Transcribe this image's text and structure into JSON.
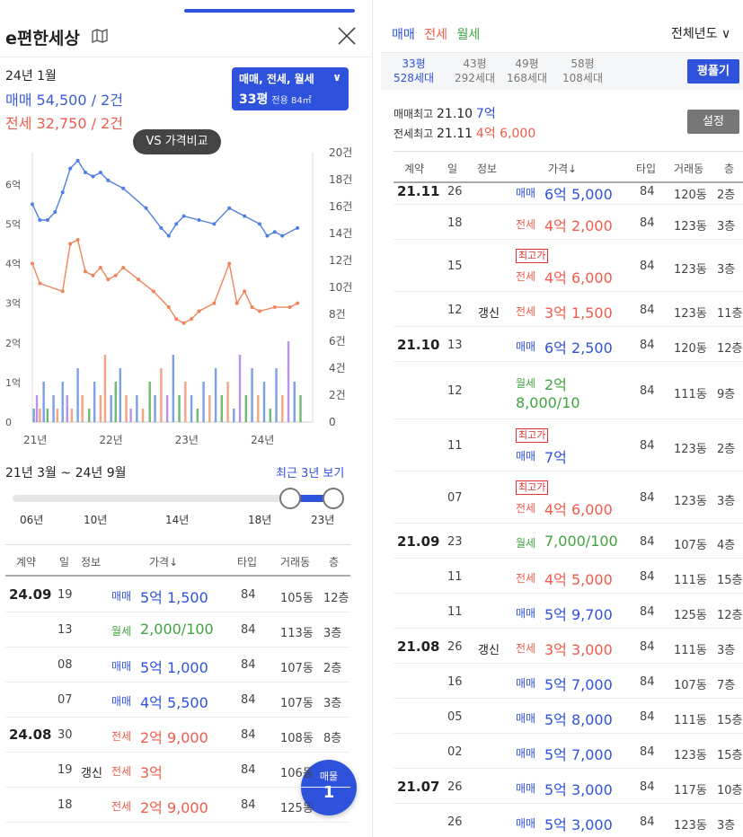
{
  "app": {
    "title": "e편한세상"
  },
  "header": {
    "map_icon": "map-icon",
    "close_icon": "close-icon"
  },
  "info": {
    "date": "24년 1월",
    "sale": "매매 54,500 / 2건",
    "jeonse": "전세 32,750 / 2건"
  },
  "filter": {
    "types": "매매, 전세, 월세",
    "chevron": "∨",
    "size": "33평",
    "area": "전용 84㎡"
  },
  "compare_button": "VS 가격비교",
  "chart_data": {
    "type": "line",
    "x_ticks": [
      "21년",
      "22년",
      "23년",
      "24년"
    ],
    "y_left_ticks": [
      "0",
      "1억",
      "2억",
      "3억",
      "4억",
      "5억",
      "6억"
    ],
    "y_right_ticks": [
      "0",
      "2건",
      "4건",
      "6건",
      "8건",
      "10건",
      "12건",
      "14건",
      "16건",
      "18건",
      "20건"
    ],
    "y_left_range": [
      0,
      6.8
    ],
    "y_right_range": [
      0,
      20
    ],
    "x_range": [
      2021.0,
      2024.7
    ],
    "series": [
      {
        "color": "#4f7fe0",
        "points": [
          [
            2021.0,
            5.5
          ],
          [
            2021.1,
            5.1
          ],
          [
            2021.2,
            5.1
          ],
          [
            2021.3,
            5.3
          ],
          [
            2021.4,
            5.8
          ],
          [
            2021.5,
            6.4
          ],
          [
            2021.6,
            6.6
          ],
          [
            2021.7,
            6.3
          ],
          [
            2021.8,
            6.2
          ],
          [
            2021.9,
            6.3
          ],
          [
            2022.0,
            6.1
          ],
          [
            2022.2,
            5.9
          ],
          [
            2022.5,
            5.4
          ],
          [
            2022.7,
            4.9
          ],
          [
            2022.8,
            4.7
          ],
          [
            2022.9,
            5.0
          ],
          [
            2023.0,
            5.2
          ],
          [
            2023.2,
            5.1
          ],
          [
            2023.4,
            5.0
          ],
          [
            2023.6,
            5.4
          ],
          [
            2023.8,
            5.2
          ],
          [
            2024.0,
            5.0
          ],
          [
            2024.1,
            4.7
          ],
          [
            2024.2,
            4.8
          ],
          [
            2024.3,
            4.7
          ],
          [
            2024.5,
            4.9
          ]
        ]
      },
      {
        "color": "#f0845c",
        "points": [
          [
            2021.0,
            4.0
          ],
          [
            2021.1,
            3.5
          ],
          [
            2021.4,
            3.3
          ],
          [
            2021.5,
            4.5
          ],
          [
            2021.6,
            4.6
          ],
          [
            2021.7,
            3.8
          ],
          [
            2021.8,
            3.7
          ],
          [
            2021.9,
            3.9
          ],
          [
            2022.0,
            3.6
          ],
          [
            2022.1,
            3.7
          ],
          [
            2022.2,
            3.9
          ],
          [
            2022.4,
            3.6
          ],
          [
            2022.6,
            3.3
          ],
          [
            2022.8,
            2.9
          ],
          [
            2022.9,
            2.6
          ],
          [
            2023.0,
            2.5
          ],
          [
            2023.1,
            2.6
          ],
          [
            2023.2,
            2.8
          ],
          [
            2023.4,
            3.0
          ],
          [
            2023.6,
            4.0
          ],
          [
            2023.7,
            3.0
          ],
          [
            2023.8,
            3.3
          ],
          [
            2023.9,
            2.9
          ],
          [
            2024.0,
            2.8
          ],
          [
            2024.2,
            2.9
          ],
          [
            2024.4,
            2.9
          ],
          [
            2024.5,
            3.0
          ]
        ]
      }
    ],
    "volume_bars": [
      {
        "x": 2021.02,
        "n": 1,
        "c": "#4f7fe0"
      },
      {
        "x": 2021.06,
        "n": 2,
        "c": "#a070e0"
      },
      {
        "x": 2021.1,
        "n": 1,
        "c": "#f0845c"
      },
      {
        "x": 2021.15,
        "n": 3,
        "c": "#4f7fe0"
      },
      {
        "x": 2021.2,
        "n": 1,
        "c": "#3fa33f"
      },
      {
        "x": 2021.28,
        "n": 2,
        "c": "#4f7fe0"
      },
      {
        "x": 2021.33,
        "n": 1,
        "c": "#f0845c"
      },
      {
        "x": 2021.4,
        "n": 3,
        "c": "#4f7fe0"
      },
      {
        "x": 2021.46,
        "n": 2,
        "c": "#a070e0"
      },
      {
        "x": 2021.52,
        "n": 1,
        "c": "#f0845c"
      },
      {
        "x": 2021.6,
        "n": 4,
        "c": "#4f7fe0"
      },
      {
        "x": 2021.66,
        "n": 2,
        "c": "#f0845c"
      },
      {
        "x": 2021.75,
        "n": 1,
        "c": "#3fa33f"
      },
      {
        "x": 2021.82,
        "n": 3,
        "c": "#4f7fe0"
      },
      {
        "x": 2021.9,
        "n": 2,
        "c": "#f0845c"
      },
      {
        "x": 2021.96,
        "n": 5,
        "c": "#f0845c"
      },
      {
        "x": 2022.04,
        "n": 2,
        "c": "#4f7fe0"
      },
      {
        "x": 2022.1,
        "n": 3,
        "c": "#3fa33f"
      },
      {
        "x": 2022.16,
        "n": 4,
        "c": "#4f7fe0"
      },
      {
        "x": 2022.24,
        "n": 2,
        "c": "#f0845c"
      },
      {
        "x": 2022.3,
        "n": 1,
        "c": "#a070e0"
      },
      {
        "x": 2022.38,
        "n": 2,
        "c": "#4f7fe0"
      },
      {
        "x": 2022.46,
        "n": 1,
        "c": "#f0845c"
      },
      {
        "x": 2022.55,
        "n": 3,
        "c": "#3fa33f"
      },
      {
        "x": 2022.62,
        "n": 2,
        "c": "#4f7fe0"
      },
      {
        "x": 2022.7,
        "n": 4,
        "c": "#f0845c"
      },
      {
        "x": 2022.78,
        "n": 2,
        "c": "#a070e0"
      },
      {
        "x": 2022.86,
        "n": 5,
        "c": "#4f7fe0"
      },
      {
        "x": 2022.94,
        "n": 2,
        "c": "#3fa33f"
      },
      {
        "x": 2023.02,
        "n": 3,
        "c": "#f0845c"
      },
      {
        "x": 2023.1,
        "n": 2,
        "c": "#4f7fe0"
      },
      {
        "x": 2023.18,
        "n": 1,
        "c": "#3fa33f"
      },
      {
        "x": 2023.26,
        "n": 3,
        "c": "#4f7fe0"
      },
      {
        "x": 2023.34,
        "n": 2,
        "c": "#f0845c"
      },
      {
        "x": 2023.42,
        "n": 4,
        "c": "#4f7fe0"
      },
      {
        "x": 2023.5,
        "n": 2,
        "c": "#3fa33f"
      },
      {
        "x": 2023.58,
        "n": 3,
        "c": "#f0845c"
      },
      {
        "x": 2023.66,
        "n": 1,
        "c": "#4f7fe0"
      },
      {
        "x": 2023.74,
        "n": 5,
        "c": "#a070e0"
      },
      {
        "x": 2023.82,
        "n": 2,
        "c": "#3fa33f"
      },
      {
        "x": 2023.9,
        "n": 4,
        "c": "#4f7fe0"
      },
      {
        "x": 2023.98,
        "n": 2,
        "c": "#f0845c"
      },
      {
        "x": 2024.06,
        "n": 3,
        "c": "#4f7fe0"
      },
      {
        "x": 2024.14,
        "n": 1,
        "c": "#3fa33f"
      },
      {
        "x": 2024.22,
        "n": 4,
        "c": "#4f7fe0"
      },
      {
        "x": 2024.3,
        "n": 2,
        "c": "#f0845c"
      },
      {
        "x": 2024.38,
        "n": 6,
        "c": "#a070e0"
      },
      {
        "x": 2024.46,
        "n": 3,
        "c": "#4f7fe0"
      },
      {
        "x": 2024.54,
        "n": 2,
        "c": "#3fa33f"
      }
    ]
  },
  "range": {
    "text": "21년 3월 ~ 24년 9월",
    "link": "최근 3년 보기",
    "labels": [
      "06년",
      "10년",
      "14년",
      "18년",
      "23년"
    ]
  },
  "table": {
    "headers": [
      "계약",
      "일",
      "정보",
      "가격↓",
      "타입",
      "거래동",
      "층"
    ],
    "rows": [
      {
        "month": "24.09",
        "day": "19",
        "info": "",
        "kind": "매매",
        "price": "5억 1,500",
        "color": "blue",
        "type": "84",
        "bldg": "105동",
        "floor": "12층"
      },
      {
        "month": "",
        "day": "13",
        "info": "",
        "kind": "월세",
        "price": "2,000/100",
        "color": "green",
        "type": "84",
        "bldg": "113동",
        "floor": "3층"
      },
      {
        "month": "",
        "day": "08",
        "info": "",
        "kind": "매매",
        "price": "5억 1,000",
        "color": "blue",
        "type": "84",
        "bldg": "107동",
        "floor": "2층"
      },
      {
        "month": "",
        "day": "07",
        "info": "",
        "kind": "매매",
        "price": "4억 5,500",
        "color": "blue",
        "type": "84",
        "bldg": "107동",
        "floor": "3층"
      },
      {
        "month": "24.08",
        "day": "30",
        "info": "",
        "kind": "전세",
        "price": "2억 9,000",
        "color": "red",
        "type": "84",
        "bldg": "108동",
        "floor": "8층"
      },
      {
        "month": "",
        "day": "19",
        "info": "갱신",
        "kind": "전세",
        "price": "3억",
        "color": "red",
        "type": "84",
        "bldg": "106동",
        "floor": ""
      },
      {
        "month": "",
        "day": "18",
        "info": "",
        "kind": "전세",
        "price": "2억 9,000",
        "color": "red",
        "type": "84",
        "bldg": "125동",
        "floor": ""
      }
    ]
  },
  "float_button": {
    "label": "매물",
    "count": "1"
  },
  "right": {
    "tabs": [
      {
        "label": "매매",
        "color": "blue"
      },
      {
        "label": "전세",
        "color": "red"
      },
      {
        "label": "월세",
        "color": "green"
      }
    ],
    "year_filter": "전체년도",
    "chevron": "∨",
    "pyeong": [
      {
        "size": "33평",
        "households": "528세대",
        "active": true
      },
      {
        "size": "43평",
        "households": "292세대",
        "active": false
      },
      {
        "size": "49평",
        "households": "168세대",
        "active": false
      },
      {
        "size": "58평",
        "households": "108세대",
        "active": false
      }
    ],
    "pyeong_button": "평풀기",
    "sale_max_label": "매매최고",
    "sale_max_date": "21.10",
    "sale_max_price": "7억",
    "jeonse_max_label": "전세최고",
    "jeonse_max_date": "21.11",
    "jeonse_max_price": "4억 6,000",
    "settings_button": "설정",
    "headers": [
      "계약",
      "일",
      "정보",
      "가격↓",
      "타입",
      "거래동",
      "층"
    ],
    "high_badge": "최고가",
    "rows": [
      {
        "month": "21.11",
        "day": "26",
        "info": "",
        "kind": "매매",
        "price": "6억 5,000",
        "color": "blue",
        "type": "84",
        "bldg": "120동",
        "floor": "2층",
        "badge": false,
        "h": 30
      },
      {
        "month": "",
        "day": "18",
        "info": "",
        "kind": "전세",
        "price": "4억 2,000",
        "color": "red",
        "type": "84",
        "bldg": "123동",
        "floor": "3층",
        "badge": false,
        "h": 39
      },
      {
        "month": "",
        "day": "15",
        "info": "",
        "kind": "전세",
        "price": "4억 6,000",
        "color": "red",
        "type": "84",
        "bldg": "123동",
        "floor": "3층",
        "badge": true,
        "h": 58
      },
      {
        "month": "",
        "day": "12",
        "info": "갱신",
        "kind": "전세",
        "price": "3억 1,500",
        "color": "red",
        "type": "84",
        "bldg": "123동",
        "floor": "11층",
        "badge": false,
        "h": 39
      },
      {
        "month": "21.10",
        "day": "13",
        "info": "",
        "kind": "매매",
        "price": "6억 2,500",
        "color": "blue",
        "type": "84",
        "bldg": "120동",
        "floor": "12층",
        "badge": false,
        "h": 39
      },
      {
        "month": "",
        "day": "12",
        "info": "",
        "kind": "월세",
        "price": "2억",
        "price2": "8,000/10",
        "color": "green",
        "type": "84",
        "bldg": "111동",
        "floor": "9층",
        "badge": false,
        "h": 64
      },
      {
        "month": "",
        "day": "11",
        "info": "",
        "kind": "매매",
        "price": "7억",
        "color": "blue",
        "type": "84",
        "bldg": "123동",
        "floor": "2층",
        "badge": true,
        "h": 58
      },
      {
        "month": "",
        "day": "07",
        "info": "",
        "kind": "전세",
        "price": "4억 6,000",
        "color": "red",
        "type": "84",
        "bldg": "123동",
        "floor": "3층",
        "badge": true,
        "h": 58
      },
      {
        "month": "21.09",
        "day": "23",
        "info": "",
        "kind": "월세",
        "price": "7,000/100",
        "color": "green",
        "type": "84",
        "bldg": "107동",
        "floor": "4층",
        "badge": false,
        "h": 39
      },
      {
        "month": "",
        "day": "11",
        "info": "",
        "kind": "전세",
        "price": "4억 5,000",
        "color": "red",
        "type": "84",
        "bldg": "111동",
        "floor": "15층",
        "badge": false,
        "h": 39
      },
      {
        "month": "",
        "day": "11",
        "info": "",
        "kind": "매매",
        "price": "5억 9,700",
        "color": "blue",
        "type": "84",
        "bldg": "125동",
        "floor": "12층",
        "badge": false,
        "h": 39
      },
      {
        "month": "21.08",
        "day": "26",
        "info": "갱신",
        "kind": "전세",
        "price": "3억 3,000",
        "color": "red",
        "type": "84",
        "bldg": "111동",
        "floor": "3층",
        "badge": false,
        "h": 39
      },
      {
        "month": "",
        "day": "16",
        "info": "",
        "kind": "매매",
        "price": "5억 7,000",
        "color": "blue",
        "type": "84",
        "bldg": "107동",
        "floor": "7층",
        "badge": false,
        "h": 39
      },
      {
        "month": "",
        "day": "05",
        "info": "",
        "kind": "매매",
        "price": "5억 8,000",
        "color": "blue",
        "type": "84",
        "bldg": "111동",
        "floor": "15층",
        "badge": false,
        "h": 39
      },
      {
        "month": "",
        "day": "02",
        "info": "",
        "kind": "매매",
        "price": "5억 7,000",
        "color": "blue",
        "type": "84",
        "bldg": "123동",
        "floor": "15층",
        "badge": false,
        "h": 39
      },
      {
        "month": "21.07",
        "day": "26",
        "info": "",
        "kind": "매매",
        "price": "5억 3,000",
        "color": "blue",
        "type": "84",
        "bldg": "117동",
        "floor": "10층",
        "badge": false,
        "h": 39
      },
      {
        "month": "",
        "day": "26",
        "info": "",
        "kind": "매매",
        "price": "5억 3,000",
        "color": "blue",
        "type": "84",
        "bldg": "123동",
        "floor": "3층",
        "badge": false,
        "h": 39
      }
    ]
  }
}
